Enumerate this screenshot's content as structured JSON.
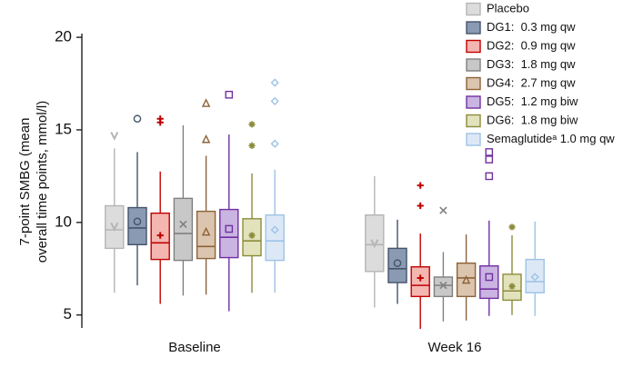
{
  "chart_data": {
    "type": "box",
    "ylabel": [
      "7-point SMBG (mean",
      "overall time points, mmol/l)"
    ],
    "categories": [
      "Baseline",
      "Week 16"
    ],
    "ylim": [
      4.3,
      20.2
    ],
    "yticks": [
      5,
      10,
      15,
      20
    ],
    "series": [
      {
        "name": "Placebo",
        "color": "#b5b5b5",
        "fill": "#dcdcdc",
        "marker": "v",
        "boxes": [
          {
            "whislo": 6.2,
            "q1": 8.6,
            "med": 9.6,
            "q3": 10.9,
            "whishi": 14.0,
            "mean": 9.8,
            "fliers": [
              14.7
            ]
          },
          {
            "whislo": 5.4,
            "q1": 7.35,
            "med": 8.8,
            "q3": 10.4,
            "whishi": 12.5,
            "mean": 8.9,
            "fliers": []
          }
        ]
      },
      {
        "name": "DG1:  0.3 mg qw",
        "color": "#44546a",
        "fill": "#8a9ab2",
        "marker": "circle",
        "boxes": [
          {
            "whislo": 6.6,
            "q1": 8.8,
            "med": 9.7,
            "q3": 10.8,
            "whishi": 13.8,
            "mean": 10.05,
            "fliers": [
              15.6
            ]
          },
          {
            "whislo": 5.6,
            "q1": 6.75,
            "med": 7.5,
            "q3": 8.6,
            "whishi": 10.15,
            "mean": 7.8,
            "fliers": []
          }
        ]
      },
      {
        "name": "DG2:  0.9 mg qw",
        "color": "#c00000",
        "fill": "#f4b6b0",
        "marker": "plus",
        "boxes": [
          {
            "whislo": 5.6,
            "q1": 8.0,
            "med": 8.9,
            "q3": 10.5,
            "whishi": 12.75,
            "mean": 9.3,
            "fliers": [
              15.4,
              15.6
            ]
          },
          {
            "whislo": 4.25,
            "q1": 6.0,
            "med": 6.6,
            "q3": 7.6,
            "whishi": 9.4,
            "mean": 7.0,
            "fliers": [
              10.9,
              12.0
            ]
          }
        ]
      },
      {
        "name": "DG3:  1.8 mg qw",
        "color": "#808080",
        "fill": "#c8c8c8",
        "marker": "x",
        "boxes": [
          {
            "whislo": 6.05,
            "q1": 7.95,
            "med": 9.4,
            "q3": 11.3,
            "whishi": 15.25,
            "mean": 9.9,
            "fliers": []
          },
          {
            "whislo": 4.65,
            "q1": 6.0,
            "med": 6.6,
            "q3": 7.05,
            "whishi": 8.4,
            "mean": 6.6,
            "fliers": [
              10.65
            ]
          }
        ]
      },
      {
        "name": "DG4:  2.7 mg qw",
        "color": "#8c6239",
        "fill": "#dcc5ae",
        "marker": "triangle",
        "boxes": [
          {
            "whislo": 6.1,
            "q1": 8.05,
            "med": 8.7,
            "q3": 10.6,
            "whishi": 13.6,
            "mean": 9.5,
            "fliers": [
              14.5,
              16.45
            ]
          },
          {
            "whislo": 4.7,
            "q1": 6.0,
            "med": 7.0,
            "q3": 7.8,
            "whishi": 9.35,
            "mean": 6.9,
            "fliers": []
          }
        ]
      },
      {
        "name": "DG5:  1.2 mg biw",
        "color": "#7030a0",
        "fill": "#cab4e2",
        "marker": "square",
        "boxes": [
          {
            "whislo": 5.2,
            "q1": 8.1,
            "med": 9.2,
            "q3": 10.7,
            "whishi": 14.75,
            "mean": 9.65,
            "fliers": [
              16.9
            ]
          },
          {
            "whislo": 4.95,
            "q1": 5.9,
            "med": 6.4,
            "q3": 7.65,
            "whishi": 10.1,
            "mean": 7.05,
            "fliers": [
              12.5,
              13.4,
              13.8
            ]
          }
        ]
      },
      {
        "name": "DG6:  1.8 mg biw",
        "color": "#8c8c3c",
        "fill": "#e2e2bc",
        "marker": "star",
        "boxes": [
          {
            "whislo": 6.2,
            "q1": 8.2,
            "med": 9.0,
            "q3": 10.2,
            "whishi": 12.65,
            "mean": 9.3,
            "fliers": [
              14.15,
              15.3
            ]
          },
          {
            "whislo": 5.0,
            "q1": 5.8,
            "med": 6.3,
            "q3": 7.2,
            "whishi": 9.3,
            "mean": 6.55,
            "fliers": [
              9.75
            ]
          }
        ]
      },
      {
        "name": "Semaglutideᵃ 1.0 mg qw",
        "color": "#9dc3e6",
        "fill": "#dde8f7",
        "marker": "diamond",
        "boxes": [
          {
            "whislo": 6.2,
            "q1": 7.95,
            "med": 9.0,
            "q3": 10.4,
            "whishi": 12.85,
            "mean": 9.6,
            "fliers": [
              14.25,
              16.55,
              17.55
            ]
          },
          {
            "whislo": 4.95,
            "q1": 6.2,
            "med": 6.8,
            "q3": 8.0,
            "whishi": 10.05,
            "mean": 7.05,
            "fliers": []
          }
        ]
      }
    ]
  }
}
